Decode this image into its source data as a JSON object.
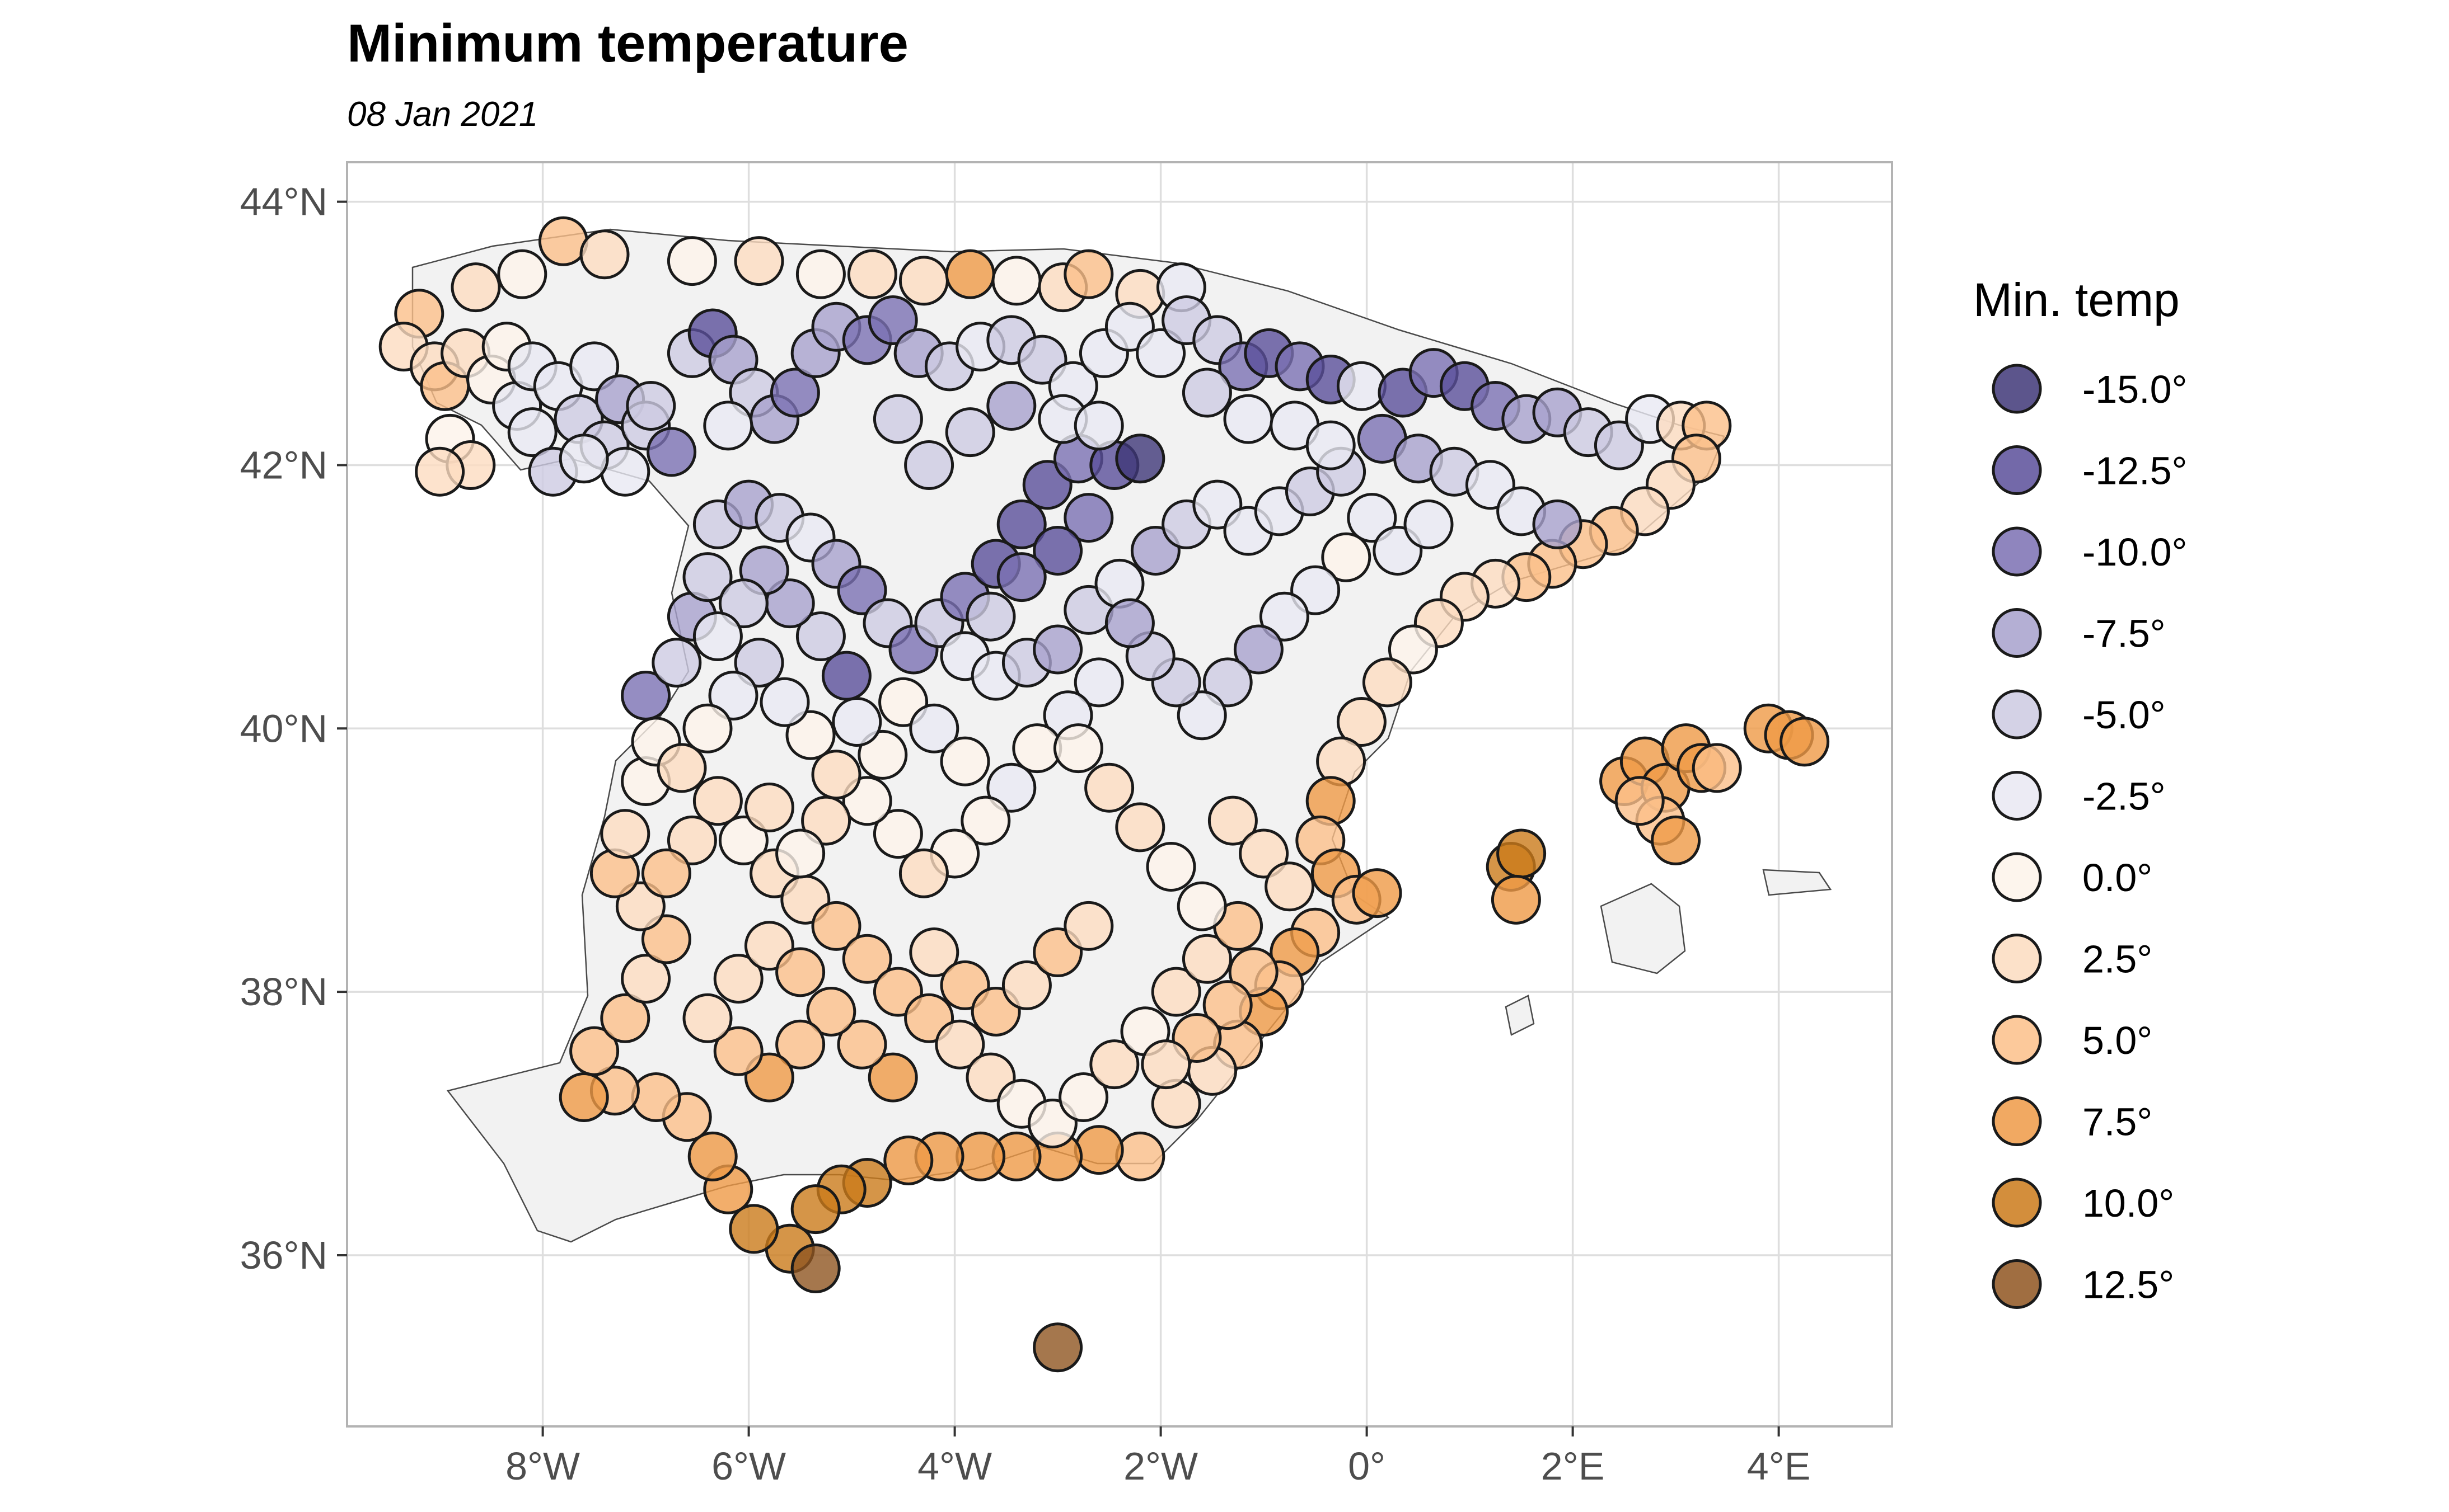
{
  "title": "Minimum temperature",
  "subtitle": "08 Jan 2021",
  "legend": {
    "title": "Min. temp",
    "items": [
      {
        "value": -15.0,
        "label": "-15.0°",
        "color": "#3f3778"
      },
      {
        "value": -12.5,
        "label": "-12.5°",
        "color": "#5a4f9a"
      },
      {
        "value": -10.0,
        "label": "-10.0°",
        "color": "#7b70b3"
      },
      {
        "value": -7.5,
        "label": "-7.5°",
        "color": "#a7a1cd"
      },
      {
        "value": -5.0,
        "label": "-5.0°",
        "color": "#cdcae2"
      },
      {
        "value": -2.5,
        "label": "-2.5°",
        "color": "#e9e8f2"
      },
      {
        "value": 0.0,
        "label": "0.0°",
        "color": "#fdf3ea"
      },
      {
        "value": 2.5,
        "label": "2.5°",
        "color": "#fcdcc0"
      },
      {
        "value": 5.0,
        "label": "5.0°",
        "color": "#fbbf8a"
      },
      {
        "value": 7.5,
        "label": "7.5°",
        "color": "#ef9a46"
      },
      {
        "value": 10.0,
        "label": "10.0°",
        "color": "#cb7a1a"
      },
      {
        "value": 12.5,
        "label": "12.5°",
        "color": "#8f5520"
      }
    ]
  },
  "chart_data": {
    "type": "scatter",
    "map": "Spain (peninsula and Balearic Islands) with weather stations coloured by minimum temperature",
    "xlim": [
      -9.9,
      5.1
    ],
    "ylim": [
      34.7,
      44.3
    ],
    "x_ticks": [
      {
        "value": -8,
        "label": "8°W"
      },
      {
        "value": -6,
        "label": "6°W"
      },
      {
        "value": -4,
        "label": "4°W"
      },
      {
        "value": -2,
        "label": "2°W"
      },
      {
        "value": 0,
        "label": "0°"
      },
      {
        "value": 2,
        "label": "2°E"
      },
      {
        "value": 4,
        "label": "4°E"
      }
    ],
    "y_ticks": [
      {
        "value": 36,
        "label": "36°N"
      },
      {
        "value": 38,
        "label": "38°N"
      },
      {
        "value": 40,
        "label": "40°N"
      },
      {
        "value": 42,
        "label": "42°N"
      },
      {
        "value": 44,
        "label": "44°N"
      }
    ],
    "grid": true,
    "legend_position": "right",
    "points": [
      [
        -8.65,
        43.35,
        2.5
      ],
      [
        -8.2,
        43.45,
        0
      ],
      [
        -7.8,
        43.7,
        5
      ],
      [
        -7.4,
        43.6,
        2.5
      ],
      [
        -6.55,
        43.55,
        0
      ],
      [
        -5.9,
        43.55,
        2.5
      ],
      [
        -5.3,
        43.45,
        0
      ],
      [
        -4.8,
        43.45,
        2.5
      ],
      [
        -4.3,
        43.4,
        2.5
      ],
      [
        -3.85,
        43.45,
        7.5
      ],
      [
        -3.4,
        43.4,
        0
      ],
      [
        -2.95,
        43.35,
        2.5
      ],
      [
        -2.7,
        43.45,
        5
      ],
      [
        -2.2,
        43.3,
        2.5
      ],
      [
        -1.8,
        43.35,
        -2.5
      ],
      [
        -9.2,
        43.15,
        5
      ],
      [
        -9.35,
        42.9,
        2.5
      ],
      [
        -9.05,
        42.75,
        2.5
      ],
      [
        -8.95,
        42.6,
        5
      ],
      [
        -8.75,
        42.85,
        2.5
      ],
      [
        -8.5,
        42.65,
        0
      ],
      [
        -8.25,
        42.45,
        -2.5
      ],
      [
        -8.1,
        42.25,
        -2.5
      ],
      [
        -8.9,
        42.2,
        0
      ],
      [
        -8.7,
        42.0,
        2.5
      ],
      [
        -9.0,
        41.95,
        2.5
      ],
      [
        -8.35,
        42.9,
        0
      ],
      [
        -8.1,
        42.75,
        -2.5
      ],
      [
        -7.85,
        42.6,
        -2.5
      ],
      [
        -7.65,
        42.35,
        -5
      ],
      [
        -7.4,
        42.15,
        -5
      ],
      [
        -7.2,
        41.95,
        -2.5
      ],
      [
        -7.5,
        42.75,
        -2.5
      ],
      [
        -7.25,
        42.5,
        -7.5
      ],
      [
        -7.0,
        42.3,
        -5
      ],
      [
        -6.75,
        42.1,
        -10
      ],
      [
        -6.55,
        42.85,
        -5
      ],
      [
        -6.35,
        43.0,
        -12.5
      ],
      [
        -6.15,
        42.8,
        -7.5
      ],
      [
        -5.95,
        42.55,
        -5
      ],
      [
        -5.75,
        42.35,
        -7.5
      ],
      [
        -5.55,
        42.55,
        -10
      ],
      [
        -5.35,
        42.85,
        -7.5
      ],
      [
        -5.15,
        43.05,
        -7.5
      ],
      [
        -4.85,
        42.95,
        -10
      ],
      [
        -4.6,
        43.1,
        -10
      ],
      [
        -4.35,
        42.85,
        -7.5
      ],
      [
        -4.05,
        42.75,
        -5
      ],
      [
        -3.75,
        42.9,
        -2.5
      ],
      [
        -3.45,
        42.95,
        -5
      ],
      [
        -3.15,
        42.8,
        -5
      ],
      [
        -2.85,
        42.6,
        -2.5
      ],
      [
        -2.55,
        42.85,
        -2.5
      ],
      [
        -2.3,
        43.05,
        -2.5
      ],
      [
        -2.0,
        42.85,
        -2.5
      ],
      [
        -1.75,
        43.1,
        -5
      ],
      [
        -1.45,
        42.95,
        -5
      ],
      [
        -1.2,
        42.75,
        -10
      ],
      [
        -0.95,
        42.85,
        -12.5
      ],
      [
        -0.65,
        42.75,
        -10
      ],
      [
        -0.35,
        42.65,
        -12.5
      ],
      [
        -0.05,
        42.6,
        -2.5
      ],
      [
        0.35,
        42.55,
        -12.5
      ],
      [
        0.65,
        42.7,
        -10
      ],
      [
        0.95,
        42.6,
        -12.5
      ],
      [
        1.25,
        42.45,
        -10
      ],
      [
        1.55,
        42.35,
        -7.5
      ],
      [
        1.85,
        42.4,
        -7.5
      ],
      [
        2.15,
        42.25,
        -5
      ],
      [
        2.45,
        42.15,
        -5
      ],
      [
        2.75,
        42.35,
        -2.5
      ],
      [
        3.05,
        42.3,
        2.5
      ],
      [
        3.3,
        42.3,
        5
      ],
      [
        3.2,
        42.05,
        5
      ],
      [
        2.95,
        41.85,
        2.5
      ],
      [
        2.7,
        41.65,
        2.5
      ],
      [
        2.4,
        41.5,
        5
      ],
      [
        2.1,
        41.4,
        5
      ],
      [
        1.8,
        41.25,
        5
      ],
      [
        1.55,
        41.15,
        5
      ],
      [
        1.25,
        41.1,
        2.5
      ],
      [
        0.95,
        41.0,
        2.5
      ],
      [
        0.7,
        40.8,
        2.5
      ],
      [
        0.45,
        40.6,
        0
      ],
      [
        0.2,
        40.35,
        2.5
      ],
      [
        -0.05,
        40.05,
        2.5
      ],
      [
        -0.25,
        39.75,
        2.5
      ],
      [
        -0.35,
        39.45,
        7.5
      ],
      [
        -0.45,
        39.15,
        5
      ],
      [
        -0.3,
        38.9,
        7.5
      ],
      [
        -0.1,
        38.7,
        5
      ],
      [
        0.1,
        38.75,
        7.5
      ],
      [
        -0.5,
        38.45,
        5
      ],
      [
        -0.7,
        38.3,
        7.5
      ],
      [
        -0.85,
        38.05,
        5
      ],
      [
        -1.0,
        37.85,
        7.5
      ],
      [
        -1.25,
        37.6,
        5
      ],
      [
        -1.5,
        37.4,
        2.5
      ],
      [
        -1.85,
        37.15,
        2.5
      ],
      [
        -2.2,
        36.75,
        5
      ],
      [
        -2.6,
        36.8,
        7.5
      ],
      [
        -3.0,
        36.75,
        7.5
      ],
      [
        -3.4,
        36.75,
        7.5
      ],
      [
        -3.75,
        36.75,
        7.5
      ],
      [
        -4.15,
        36.75,
        7.5
      ],
      [
        -4.45,
        36.72,
        7.5
      ],
      [
        -4.85,
        36.55,
        10
      ],
      [
        -5.1,
        36.5,
        10
      ],
      [
        -5.35,
        36.35,
        10
      ],
      [
        -5.6,
        36.05,
        10
      ],
      [
        -5.35,
        35.9,
        12.5
      ],
      [
        -5.95,
        36.2,
        10
      ],
      [
        -6.2,
        36.5,
        7.5
      ],
      [
        -6.35,
        36.75,
        7.5
      ],
      [
        -6.6,
        37.05,
        5
      ],
      [
        -6.9,
        37.2,
        5
      ],
      [
        -7.3,
        37.25,
        5
      ],
      [
        -7.6,
        37.2,
        7.5
      ],
      [
        -7.5,
        37.55,
        5
      ],
      [
        -7.2,
        37.8,
        5
      ],
      [
        -7.0,
        38.1,
        2.5
      ],
      [
        -6.8,
        38.4,
        5
      ],
      [
        -7.05,
        38.65,
        2.5
      ],
      [
        -7.3,
        38.9,
        5
      ],
      [
        -7.2,
        39.2,
        2.5
      ],
      [
        -7.0,
        39.6,
        0
      ],
      [
        -6.9,
        39.9,
        0
      ],
      [
        -7.0,
        40.25,
        -10
      ],
      [
        -6.7,
        40.5,
        -5
      ],
      [
        -6.55,
        40.85,
        -7.5
      ],
      [
        -6.4,
        41.15,
        -5
      ],
      [
        -6.3,
        41.55,
        -5
      ],
      [
        -6.0,
        41.7,
        -7.5
      ],
      [
        -5.7,
        41.6,
        -5
      ],
      [
        -5.4,
        41.45,
        -2.5
      ],
      [
        -5.15,
        41.25,
        -7.5
      ],
      [
        -4.9,
        41.05,
        -10
      ],
      [
        -4.65,
        40.8,
        -5
      ],
      [
        -4.4,
        40.6,
        -10
      ],
      [
        -4.15,
        40.8,
        -5
      ],
      [
        -3.9,
        41.0,
        -10
      ],
      [
        -3.6,
        41.25,
        -12.5
      ],
      [
        -3.35,
        41.55,
        -12.5
      ],
      [
        -3.1,
        41.85,
        -12.5
      ],
      [
        -2.8,
        42.05,
        -10
      ],
      [
        -2.45,
        42.0,
        -12.5
      ],
      [
        -2.2,
        42.05,
        -15
      ],
      [
        -2.7,
        41.6,
        -10
      ],
      [
        -3.0,
        41.35,
        -12.5
      ],
      [
        -3.35,
        41.15,
        -10
      ],
      [
        -3.65,
        40.85,
        -5
      ],
      [
        -3.9,
        40.55,
        -2.5
      ],
      [
        -3.6,
        40.4,
        -2.5
      ],
      [
        -3.3,
        40.5,
        -5
      ],
      [
        -3.0,
        40.6,
        -7.5
      ],
      [
        -2.7,
        40.9,
        -5
      ],
      [
        -2.4,
        41.1,
        -2.5
      ],
      [
        -2.05,
        41.35,
        -7.5
      ],
      [
        -1.75,
        41.55,
        -5
      ],
      [
        -1.45,
        41.7,
        -2.5
      ],
      [
        -1.15,
        41.5,
        -2.5
      ],
      [
        -0.85,
        41.65,
        -2.5
      ],
      [
        -0.55,
        41.8,
        -5
      ],
      [
        -0.25,
        41.95,
        -5
      ],
      [
        0.05,
        41.6,
        -2.5
      ],
      [
        0.3,
        41.35,
        -2.5
      ],
      [
        0.6,
        41.55,
        -2.5
      ],
      [
        -0.2,
        41.3,
        0
      ],
      [
        -0.5,
        41.05,
        -2.5
      ],
      [
        -0.8,
        40.85,
        -2.5
      ],
      [
        -1.05,
        40.6,
        -7.5
      ],
      [
        -1.35,
        40.35,
        -5
      ],
      [
        -1.6,
        40.1,
        -2.5
      ],
      [
        -1.85,
        40.35,
        -5
      ],
      [
        -2.1,
        40.55,
        -5
      ],
      [
        -2.3,
        40.8,
        -7.5
      ],
      [
        -2.6,
        40.35,
        -2.5
      ],
      [
        -2.9,
        40.1,
        -2.5
      ],
      [
        -3.2,
        39.85,
        0
      ],
      [
        -3.45,
        39.55,
        -2.5
      ],
      [
        -3.7,
        39.3,
        0
      ],
      [
        -4.0,
        39.05,
        0
      ],
      [
        -4.3,
        38.9,
        2.5
      ],
      [
        -4.55,
        39.2,
        0
      ],
      [
        -4.85,
        39.45,
        0
      ],
      [
        -5.15,
        39.65,
        2.5
      ],
      [
        -5.4,
        39.95,
        0
      ],
      [
        -5.65,
        40.2,
        -2.5
      ],
      [
        -5.9,
        40.5,
        -5
      ],
      [
        -6.15,
        40.25,
        -2.5
      ],
      [
        -6.4,
        40.0,
        0
      ],
      [
        -6.65,
        39.7,
        2.5
      ],
      [
        -6.3,
        39.45,
        2.5
      ],
      [
        -6.05,
        39.15,
        0
      ],
      [
        -5.75,
        38.9,
        2.5
      ],
      [
        -5.45,
        38.7,
        2.5
      ],
      [
        -5.15,
        38.5,
        5
      ],
      [
        -4.85,
        38.25,
        5
      ],
      [
        -4.55,
        38.0,
        5
      ],
      [
        -4.25,
        37.8,
        5
      ],
      [
        -3.95,
        37.6,
        2.5
      ],
      [
        -3.65,
        37.35,
        2.5
      ],
      [
        -3.35,
        37.15,
        0
      ],
      [
        -3.05,
        37.0,
        0
      ],
      [
        -2.75,
        37.2,
        0
      ],
      [
        -2.45,
        37.45,
        2.5
      ],
      [
        -2.15,
        37.7,
        0
      ],
      [
        -1.85,
        38.0,
        2.5
      ],
      [
        -1.55,
        38.25,
        2.5
      ],
      [
        -1.25,
        38.5,
        5
      ],
      [
        -1.6,
        38.65,
        0
      ],
      [
        -1.9,
        38.95,
        0
      ],
      [
        -2.2,
        39.25,
        2.5
      ],
      [
        -2.5,
        39.55,
        2.5
      ],
      [
        -2.8,
        39.85,
        0
      ],
      [
        -1.3,
        39.3,
        2.5
      ],
      [
        -1.0,
        39.05,
        2.5
      ],
      [
        -0.75,
        38.8,
        2.5
      ],
      [
        -1.1,
        38.15,
        5
      ],
      [
        -1.35,
        37.9,
        5
      ],
      [
        -1.65,
        37.65,
        5
      ],
      [
        -1.95,
        37.45,
        2.5
      ],
      [
        -4.6,
        37.35,
        7.5
      ],
      [
        -4.9,
        37.6,
        5
      ],
      [
        -5.2,
        37.85,
        5
      ],
      [
        -5.5,
        37.6,
        5
      ],
      [
        -5.8,
        37.35,
        7.5
      ],
      [
        -6.1,
        37.55,
        5
      ],
      [
        -6.4,
        37.8,
        2.5
      ],
      [
        -6.1,
        38.1,
        2.5
      ],
      [
        -5.8,
        38.35,
        2.5
      ],
      [
        -5.5,
        38.15,
        5
      ],
      [
        -4.2,
        38.3,
        2.5
      ],
      [
        -3.9,
        38.05,
        5
      ],
      [
        -3.6,
        37.85,
        5
      ],
      [
        -3.3,
        38.05,
        2.5
      ],
      [
        -3.0,
        38.3,
        5
      ],
      [
        -2.7,
        38.5,
        2.5
      ],
      [
        -3.0,
        35.3,
        12.5
      ],
      [
        1.4,
        38.95,
        10
      ],
      [
        1.5,
        39.05,
        10
      ],
      [
        1.45,
        38.7,
        7.5
      ],
      [
        2.5,
        39.6,
        7.5
      ],
      [
        2.7,
        39.75,
        7.5
      ],
      [
        2.9,
        39.55,
        7.5
      ],
      [
        3.1,
        39.85,
        7.5
      ],
      [
        3.25,
        39.7,
        7.5
      ],
      [
        2.85,
        39.3,
        5
      ],
      [
        3.0,
        39.15,
        7.5
      ],
      [
        2.65,
        39.45,
        5
      ],
      [
        3.4,
        39.7,
        5
      ],
      [
        3.9,
        40.0,
        7.5
      ],
      [
        4.1,
        39.95,
        7.5
      ],
      [
        4.25,
        39.9,
        7.5
      ],
      [
        -7.9,
        41.95,
        -5
      ],
      [
        -7.6,
        42.05,
        -2.5
      ],
      [
        -6.95,
        42.45,
        -5
      ],
      [
        -6.2,
        42.3,
        -2.5
      ],
      [
        -4.55,
        42.35,
        -5
      ],
      [
        -4.25,
        42.0,
        -5
      ],
      [
        -3.85,
        42.25,
        -5
      ],
      [
        -3.45,
        42.45,
        -7.5
      ],
      [
        -2.95,
        42.35,
        -2.5
      ],
      [
        -2.6,
        42.3,
        -2.5
      ],
      [
        -1.55,
        42.55,
        -5
      ],
      [
        -1.15,
        42.35,
        -2.5
      ],
      [
        -0.7,
        42.3,
        -2.5
      ],
      [
        -0.35,
        42.15,
        -2.5
      ],
      [
        0.15,
        42.2,
        -10
      ],
      [
        0.5,
        42.05,
        -7.5
      ],
      [
        0.85,
        41.95,
        -5
      ],
      [
        1.2,
        41.85,
        -2.5
      ],
      [
        1.5,
        41.65,
        -2.5
      ],
      [
        1.85,
        41.55,
        -7.5
      ],
      [
        -5.05,
        40.4,
        -12.5
      ],
      [
        -5.3,
        40.7,
        -5
      ],
      [
        -5.6,
        40.95,
        -7.5
      ],
      [
        -5.85,
        41.2,
        -7.5
      ],
      [
        -6.05,
        40.95,
        -5
      ],
      [
        -6.3,
        40.7,
        -2.5
      ],
      [
        -4.5,
        40.2,
        0
      ],
      [
        -4.2,
        40.0,
        -2.5
      ],
      [
        -3.9,
        39.75,
        0
      ],
      [
        -4.7,
        39.8,
        0
      ],
      [
        -4.95,
        40.05,
        -2.5
      ],
      [
        -5.25,
        39.3,
        2.5
      ],
      [
        -5.5,
        39.05,
        0
      ],
      [
        -5.8,
        39.4,
        2.5
      ],
      [
        -6.55,
        39.15,
        2.5
      ],
      [
        -6.8,
        38.9,
        5
      ]
    ]
  }
}
